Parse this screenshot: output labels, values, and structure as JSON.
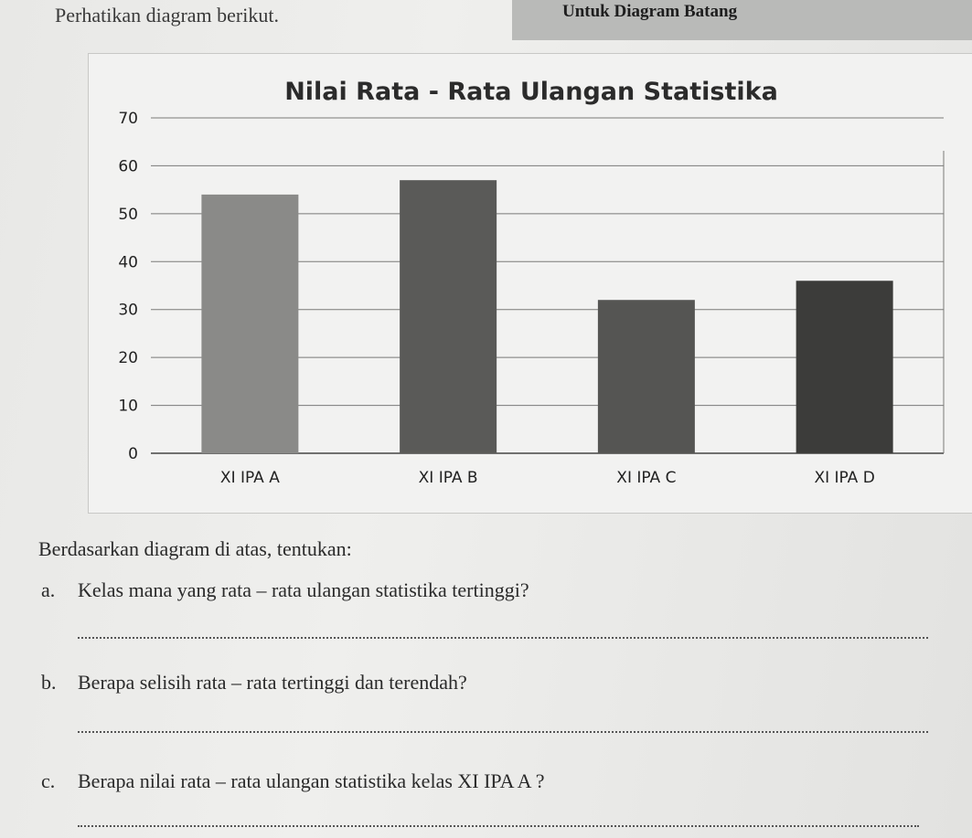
{
  "header": {
    "text": "Untuk Diagram Batang"
  },
  "intro": "Perhatikan diagram berikut.",
  "chart_data": {
    "type": "bar",
    "title": "Nilai Rata - Rata Ulangan Statistika",
    "categories": [
      "XI IPA A",
      "XI IPA B",
      "XI IPA C",
      "XI IPA D"
    ],
    "values": [
      54,
      57,
      32,
      36
    ],
    "ylim": [
      0,
      70
    ],
    "yticks": [
      "0",
      "10",
      "20",
      "30",
      "40",
      "50",
      "60",
      "70"
    ],
    "xlabel": "",
    "ylabel": "",
    "grid": true,
    "colors": [
      "#8a8a88",
      "#5a5a58",
      "#555553",
      "#3c3c3a"
    ]
  },
  "questions": {
    "lead": "Berdasarkan diagram di atas, tentukan:",
    "items": [
      {
        "letter": "a.",
        "text": "Kelas mana yang rata – rata ulangan statistika tertinggi?"
      },
      {
        "letter": "b.",
        "text": "Berapa selisih rata – rata tertinggi dan terendah?"
      },
      {
        "letter": "c.",
        "text": "Berapa nilai rata – rata ulangan statistika kelas XI IPA A ?"
      }
    ]
  }
}
